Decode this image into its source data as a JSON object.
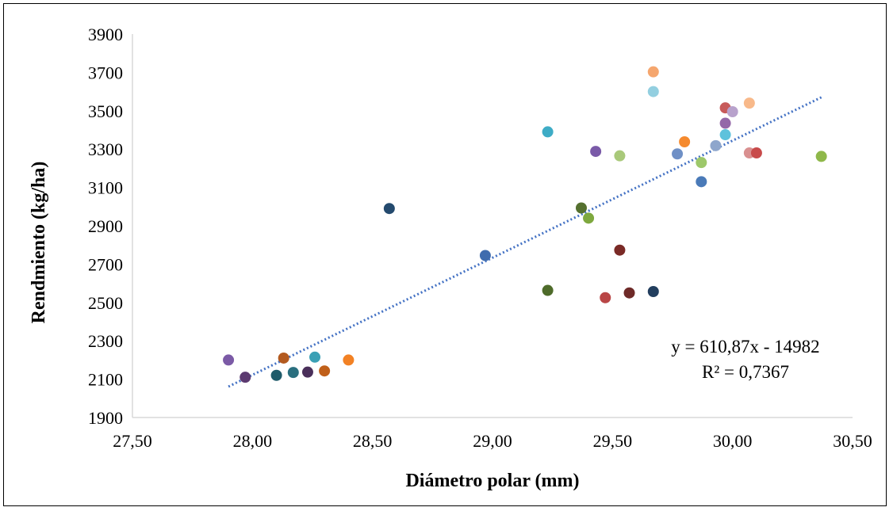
{
  "chart_data": {
    "type": "scatter",
    "xlabel": "Diámetro polar (mm)",
    "ylabel": "Rendmiento (kg/ha)",
    "xlim": [
      27.5,
      30.5
    ],
    "ylim": [
      1900,
      3900
    ],
    "x_ticks": [
      "27,50",
      "28,00",
      "28,50",
      "29,00",
      "29,50",
      "30,00",
      "30,50"
    ],
    "y_ticks": [
      "1900",
      "2100",
      "2300",
      "2500",
      "2700",
      "2900",
      "3100",
      "3300",
      "3500",
      "3700",
      "3900"
    ],
    "points": [
      {
        "x": 27.9,
        "y": 2200,
        "color": "#7b5aa6"
      },
      {
        "x": 27.97,
        "y": 2110,
        "color": "#5c3a70"
      },
      {
        "x": 28.1,
        "y": 2120,
        "color": "#1f5b6a"
      },
      {
        "x": 28.13,
        "y": 2210,
        "color": "#b35a1f"
      },
      {
        "x": 28.17,
        "y": 2135,
        "color": "#2a6f7f"
      },
      {
        "x": 28.23,
        "y": 2137,
        "color": "#4a2f5a"
      },
      {
        "x": 28.26,
        "y": 2215,
        "color": "#3aa0b5"
      },
      {
        "x": 28.3,
        "y": 2143,
        "color": "#c0601a"
      },
      {
        "x": 28.4,
        "y": 2200,
        "color": "#f28124"
      },
      {
        "x": 28.57,
        "y": 2990,
        "color": "#244a6e"
      },
      {
        "x": 28.97,
        "y": 2745,
        "color": "#3f6cae"
      },
      {
        "x": 29.23,
        "y": 3390,
        "color": "#3eacc6"
      },
      {
        "x": 29.23,
        "y": 2563,
        "color": "#4e6b2a"
      },
      {
        "x": 29.37,
        "y": 2993,
        "color": "#55702f"
      },
      {
        "x": 29.4,
        "y": 2940,
        "color": "#7ea83e"
      },
      {
        "x": 29.43,
        "y": 3288,
        "color": "#7a5aa8"
      },
      {
        "x": 29.47,
        "y": 2525,
        "color": "#b94646"
      },
      {
        "x": 29.53,
        "y": 2773,
        "color": "#7a2a26"
      },
      {
        "x": 29.53,
        "y": 3265,
        "color": "#a9c97a"
      },
      {
        "x": 29.57,
        "y": 2550,
        "color": "#6e2a28"
      },
      {
        "x": 29.67,
        "y": 3703,
        "color": "#f5a66e"
      },
      {
        "x": 29.67,
        "y": 3600,
        "color": "#93cfe0"
      },
      {
        "x": 29.67,
        "y": 2557,
        "color": "#223e5e"
      },
      {
        "x": 29.77,
        "y": 3275,
        "color": "#6f90c6"
      },
      {
        "x": 29.8,
        "y": 3338,
        "color": "#f58a2e"
      },
      {
        "x": 29.87,
        "y": 3230,
        "color": "#9dc86a"
      },
      {
        "x": 29.87,
        "y": 3130,
        "color": "#4a7ab8"
      },
      {
        "x": 29.93,
        "y": 3318,
        "color": "#8ea6cc"
      },
      {
        "x": 29.97,
        "y": 3515,
        "color": "#c75a5a"
      },
      {
        "x": 29.97,
        "y": 3435,
        "color": "#9468a8"
      },
      {
        "x": 29.97,
        "y": 3375,
        "color": "#5ec2dc"
      },
      {
        "x": 30.0,
        "y": 3495,
        "color": "#b8a2cc"
      },
      {
        "x": 30.07,
        "y": 3540,
        "color": "#f8b98a"
      },
      {
        "x": 30.07,
        "y": 3280,
        "color": "#d99090"
      },
      {
        "x": 30.1,
        "y": 3280,
        "color": "#c84a4a"
      },
      {
        "x": 30.37,
        "y": 3262,
        "color": "#8fb84a"
      }
    ],
    "trendline": {
      "type": "linear",
      "slope": 610.87,
      "intercept": -14982,
      "x_range": [
        27.9,
        30.37
      ],
      "color": "#4472c4",
      "style": "dotted"
    },
    "annotations": [
      "y = 610,87x - 14982",
      "R² = 0,7367"
    ],
    "grid": false,
    "legend": "none"
  }
}
